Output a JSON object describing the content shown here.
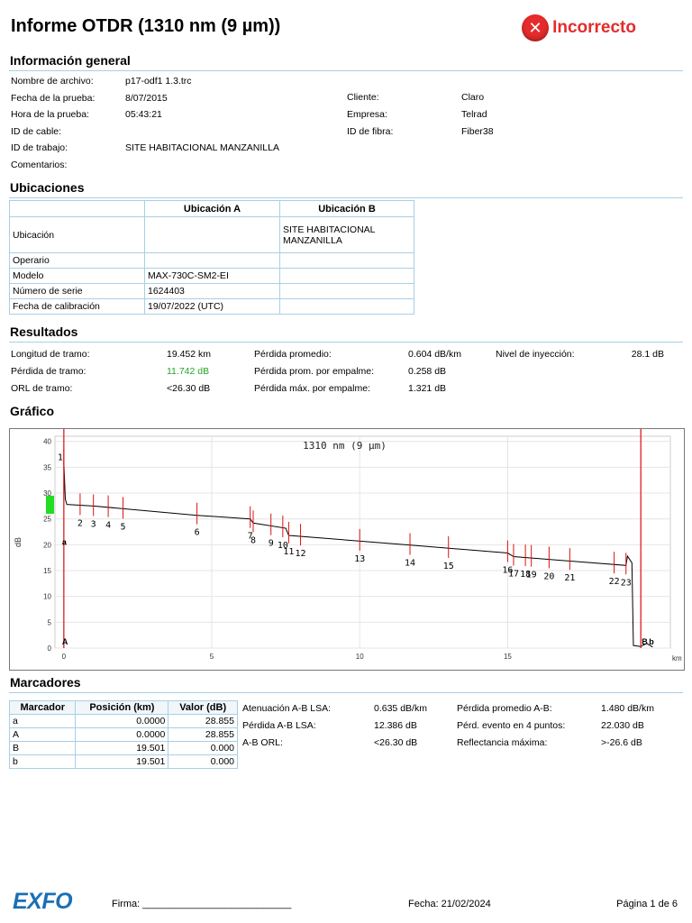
{
  "header": {
    "title": "Informe OTDR (1310 nm (9 µm))",
    "status": "Incorrecto",
    "status_color": "#e52b2b"
  },
  "general": {
    "section_title": "Información general",
    "fields": [
      {
        "label": "Nombre de archivo:",
        "value": "p17-odf1 1.3.trc"
      },
      {
        "label": "Fecha de la prueba:",
        "value": "8/07/2015"
      },
      {
        "label": "Hora de la prueba:",
        "value": "05:43:21"
      },
      {
        "label": "ID de cable:",
        "value": ""
      },
      {
        "label": "ID de trabajo:",
        "value": "SITE HABITACIONAL MANZANILLA"
      },
      {
        "label": "Comentarios:",
        "value": ""
      }
    ],
    "right_fields": [
      {
        "label": "Cliente:",
        "value": "Claro"
      },
      {
        "label": "Empresa:",
        "value": "Telrad"
      },
      {
        "label": "ID de fibra:",
        "value": "Fiber38"
      }
    ]
  },
  "locations": {
    "section_title": "Ubicaciones",
    "col_a": "Ubicación A",
    "col_b": "Ubicación B",
    "rows": [
      {
        "label": "Ubicación",
        "a": "",
        "b": "SITE HABITACIONAL MANZANILLA"
      },
      {
        "label": "Operario",
        "a": "",
        "b": ""
      },
      {
        "label": "Modelo",
        "a": "MAX-730C-SM2-EI",
        "b": ""
      },
      {
        "label": "Número de serie",
        "a": "1624403",
        "b": ""
      },
      {
        "label": "Fecha de calibración",
        "a": "19/07/2022 (UTC)",
        "b": ""
      }
    ]
  },
  "results": {
    "section_title": "Resultados",
    "col1": [
      {
        "label": "Longitud de tramo:",
        "value": "19.452 km"
      },
      {
        "label": "Pérdida de tramo:",
        "value": "11.742 dB"
      },
      {
        "label": "ORL de tramo:",
        "value": "<26.30 dB"
      }
    ],
    "col2": [
      {
        "label": "Pérdida promedio:",
        "value": "0.604 dB/km"
      },
      {
        "label": "Pérdida prom. por empalme:",
        "value": "0.258 dB"
      },
      {
        "label": "Pérdida máx. por empalme:",
        "value": "1.321 dB"
      }
    ],
    "col3": [
      {
        "label": "Nivel de inyección:",
        "value": "28.1 dB"
      }
    ],
    "pass_color": "#22a722"
  },
  "graph_title": "Gráfico",
  "chart_data": {
    "type": "line",
    "title": "1310 nm (9 µm)",
    "ylabel": "dB",
    "xlabel": "km",
    "xlim": [
      -0.3,
      20.5
    ],
    "ylim": [
      0,
      41
    ],
    "xticks": [
      0,
      5,
      10,
      15
    ],
    "yticks": [
      0,
      5,
      10,
      15,
      20,
      25,
      30,
      35,
      40
    ],
    "trace": [
      [
        0,
        36
      ],
      [
        0.05,
        28.855
      ],
      [
        0.1,
        27.8
      ],
      [
        1.0,
        27.5
      ],
      [
        4.5,
        25.7
      ],
      [
        6.3,
        25.0
      ],
      [
        6.4,
        24.2
      ],
      [
        7.5,
        23.2
      ],
      [
        7.6,
        21.8
      ],
      [
        12,
        19.8
      ],
      [
        15,
        18.4
      ],
      [
        15.2,
        17.7
      ],
      [
        19.0,
        16.0
      ],
      [
        19.05,
        17.8
      ],
      [
        19.2,
        16.5
      ],
      [
        19.25,
        0.5
      ],
      [
        19.5,
        0.3
      ],
      [
        19.7,
        0.9
      ],
      [
        19.9,
        0.2
      ]
    ],
    "events": [
      {
        "label": "1",
        "x": 0.0,
        "y": 36
      },
      {
        "label": "2",
        "x": 0.55,
        "y": 27.5
      },
      {
        "label": "3",
        "x": 1.0,
        "y": 27.3
      },
      {
        "label": "4",
        "x": 1.5,
        "y": 27.1
      },
      {
        "label": "5",
        "x": 2.0,
        "y": 26.8
      },
      {
        "label": "6",
        "x": 4.5,
        "y": 25.7
      },
      {
        "label": "7",
        "x": 6.3,
        "y": 25.0
      },
      {
        "label": "8",
        "x": 6.4,
        "y": 24.2
      },
      {
        "label": "9",
        "x": 7.0,
        "y": 23.6
      },
      {
        "label": "10",
        "x": 7.4,
        "y": 23.2
      },
      {
        "label": "11",
        "x": 7.6,
        "y": 22.0
      },
      {
        "label": "12",
        "x": 8.0,
        "y": 21.6
      },
      {
        "label": "13",
        "x": 10.0,
        "y": 20.6
      },
      {
        "label": "14",
        "x": 11.7,
        "y": 19.8
      },
      {
        "label": "15",
        "x": 13.0,
        "y": 19.2
      },
      {
        "label": "16",
        "x": 15.0,
        "y": 18.4
      },
      {
        "label": "17",
        "x": 15.2,
        "y": 17.7
      },
      {
        "label": "18",
        "x": 15.6,
        "y": 17.6
      },
      {
        "label": "19",
        "x": 15.8,
        "y": 17.5
      },
      {
        "label": "20",
        "x": 16.4,
        "y": 17.2
      },
      {
        "label": "21",
        "x": 17.1,
        "y": 16.9
      },
      {
        "label": "22",
        "x": 18.6,
        "y": 16.2
      },
      {
        "label": "23",
        "x": 19.0,
        "y": 16.0
      }
    ],
    "markers": [
      {
        "label": "a",
        "x": 0.0
      },
      {
        "label": "A",
        "x": 0.0
      },
      {
        "label": "B",
        "x": 19.501
      },
      {
        "label": "b",
        "x": 19.501
      }
    ],
    "trace_color": "#000000",
    "event_color": "#dd1111",
    "injection_color": "#22dd22"
  },
  "markers_section": {
    "section_title": "Marcadores",
    "headers": [
      "Marcador",
      "Posición (km)",
      "Valor (dB)"
    ],
    "rows": [
      [
        "a",
        "0.0000",
        "28.855"
      ],
      [
        "A",
        "0.0000",
        "28.855"
      ],
      [
        "B",
        "19.501",
        "0.000"
      ],
      [
        "b",
        "19.501",
        "0.000"
      ]
    ],
    "col1": [
      {
        "label": "Atenuación A-B LSA:",
        "value": "0.635 dB/km"
      },
      {
        "label": "Pérdida A-B LSA:",
        "value": "12.386 dB"
      },
      {
        "label": "A-B ORL:",
        "value": "<26.30 dB"
      }
    ],
    "col2": [
      {
        "label": "Pérdida promedio A-B:",
        "value": "1.480 dB/km"
      },
      {
        "label": "Pérd. evento en 4 puntos:",
        "value": "22.030 dB"
      },
      {
        "label": "Reflectancia máxima:",
        "value": ">-26.6 dB"
      }
    ]
  },
  "footer": {
    "logo": "EXFO",
    "signature": "Firma: ___________________________",
    "date": "Fecha: 21/02/2024",
    "page": "Página 1 de 6"
  }
}
